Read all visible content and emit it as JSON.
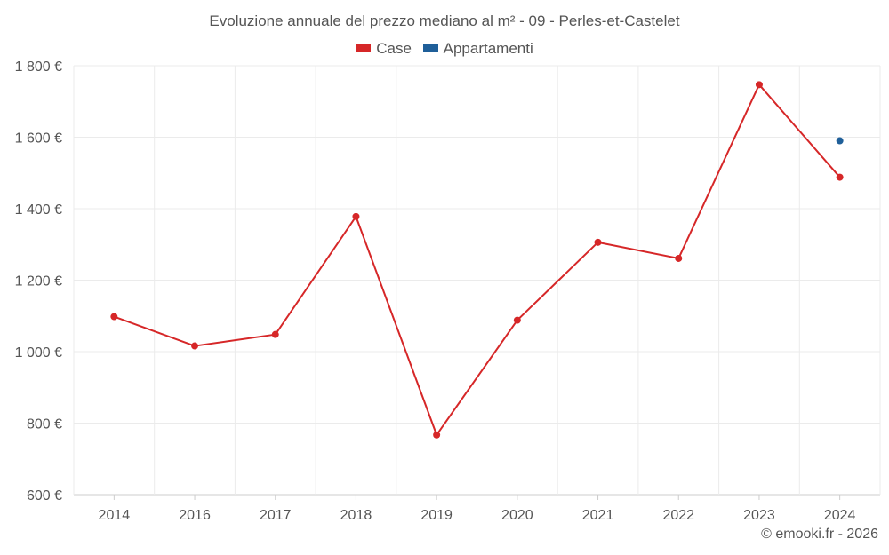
{
  "chart_data": {
    "type": "line",
    "title": "Evoluzione annuale del prezzo mediano al m² - 09 - Perles-et-Castelet",
    "categories": [
      "2014",
      "2016",
      "2017",
      "2018",
      "2019",
      "2020",
      "2021",
      "2022",
      "2023",
      "2024"
    ],
    "series": [
      {
        "name": "Case",
        "color": "#d62728",
        "values": [
          1098,
          1016,
          1048,
          1378,
          767,
          1088,
          1306,
          1261,
          1747,
          1488
        ]
      },
      {
        "name": "Appartamenti",
        "color": "#1f5f99",
        "values": [
          null,
          null,
          null,
          null,
          null,
          null,
          null,
          null,
          null,
          1590
        ]
      }
    ],
    "yticks": [
      "600 €",
      "800 €",
      "1 000 €",
      "1 200 €",
      "1 400 €",
      "1 600 €",
      "1 800 €"
    ],
    "ylim": [
      600,
      1800
    ],
    "xlabel": "",
    "ylabel": "",
    "grid": true,
    "legend_position": "top-center"
  },
  "credit": "© emooki.fr - 2026"
}
